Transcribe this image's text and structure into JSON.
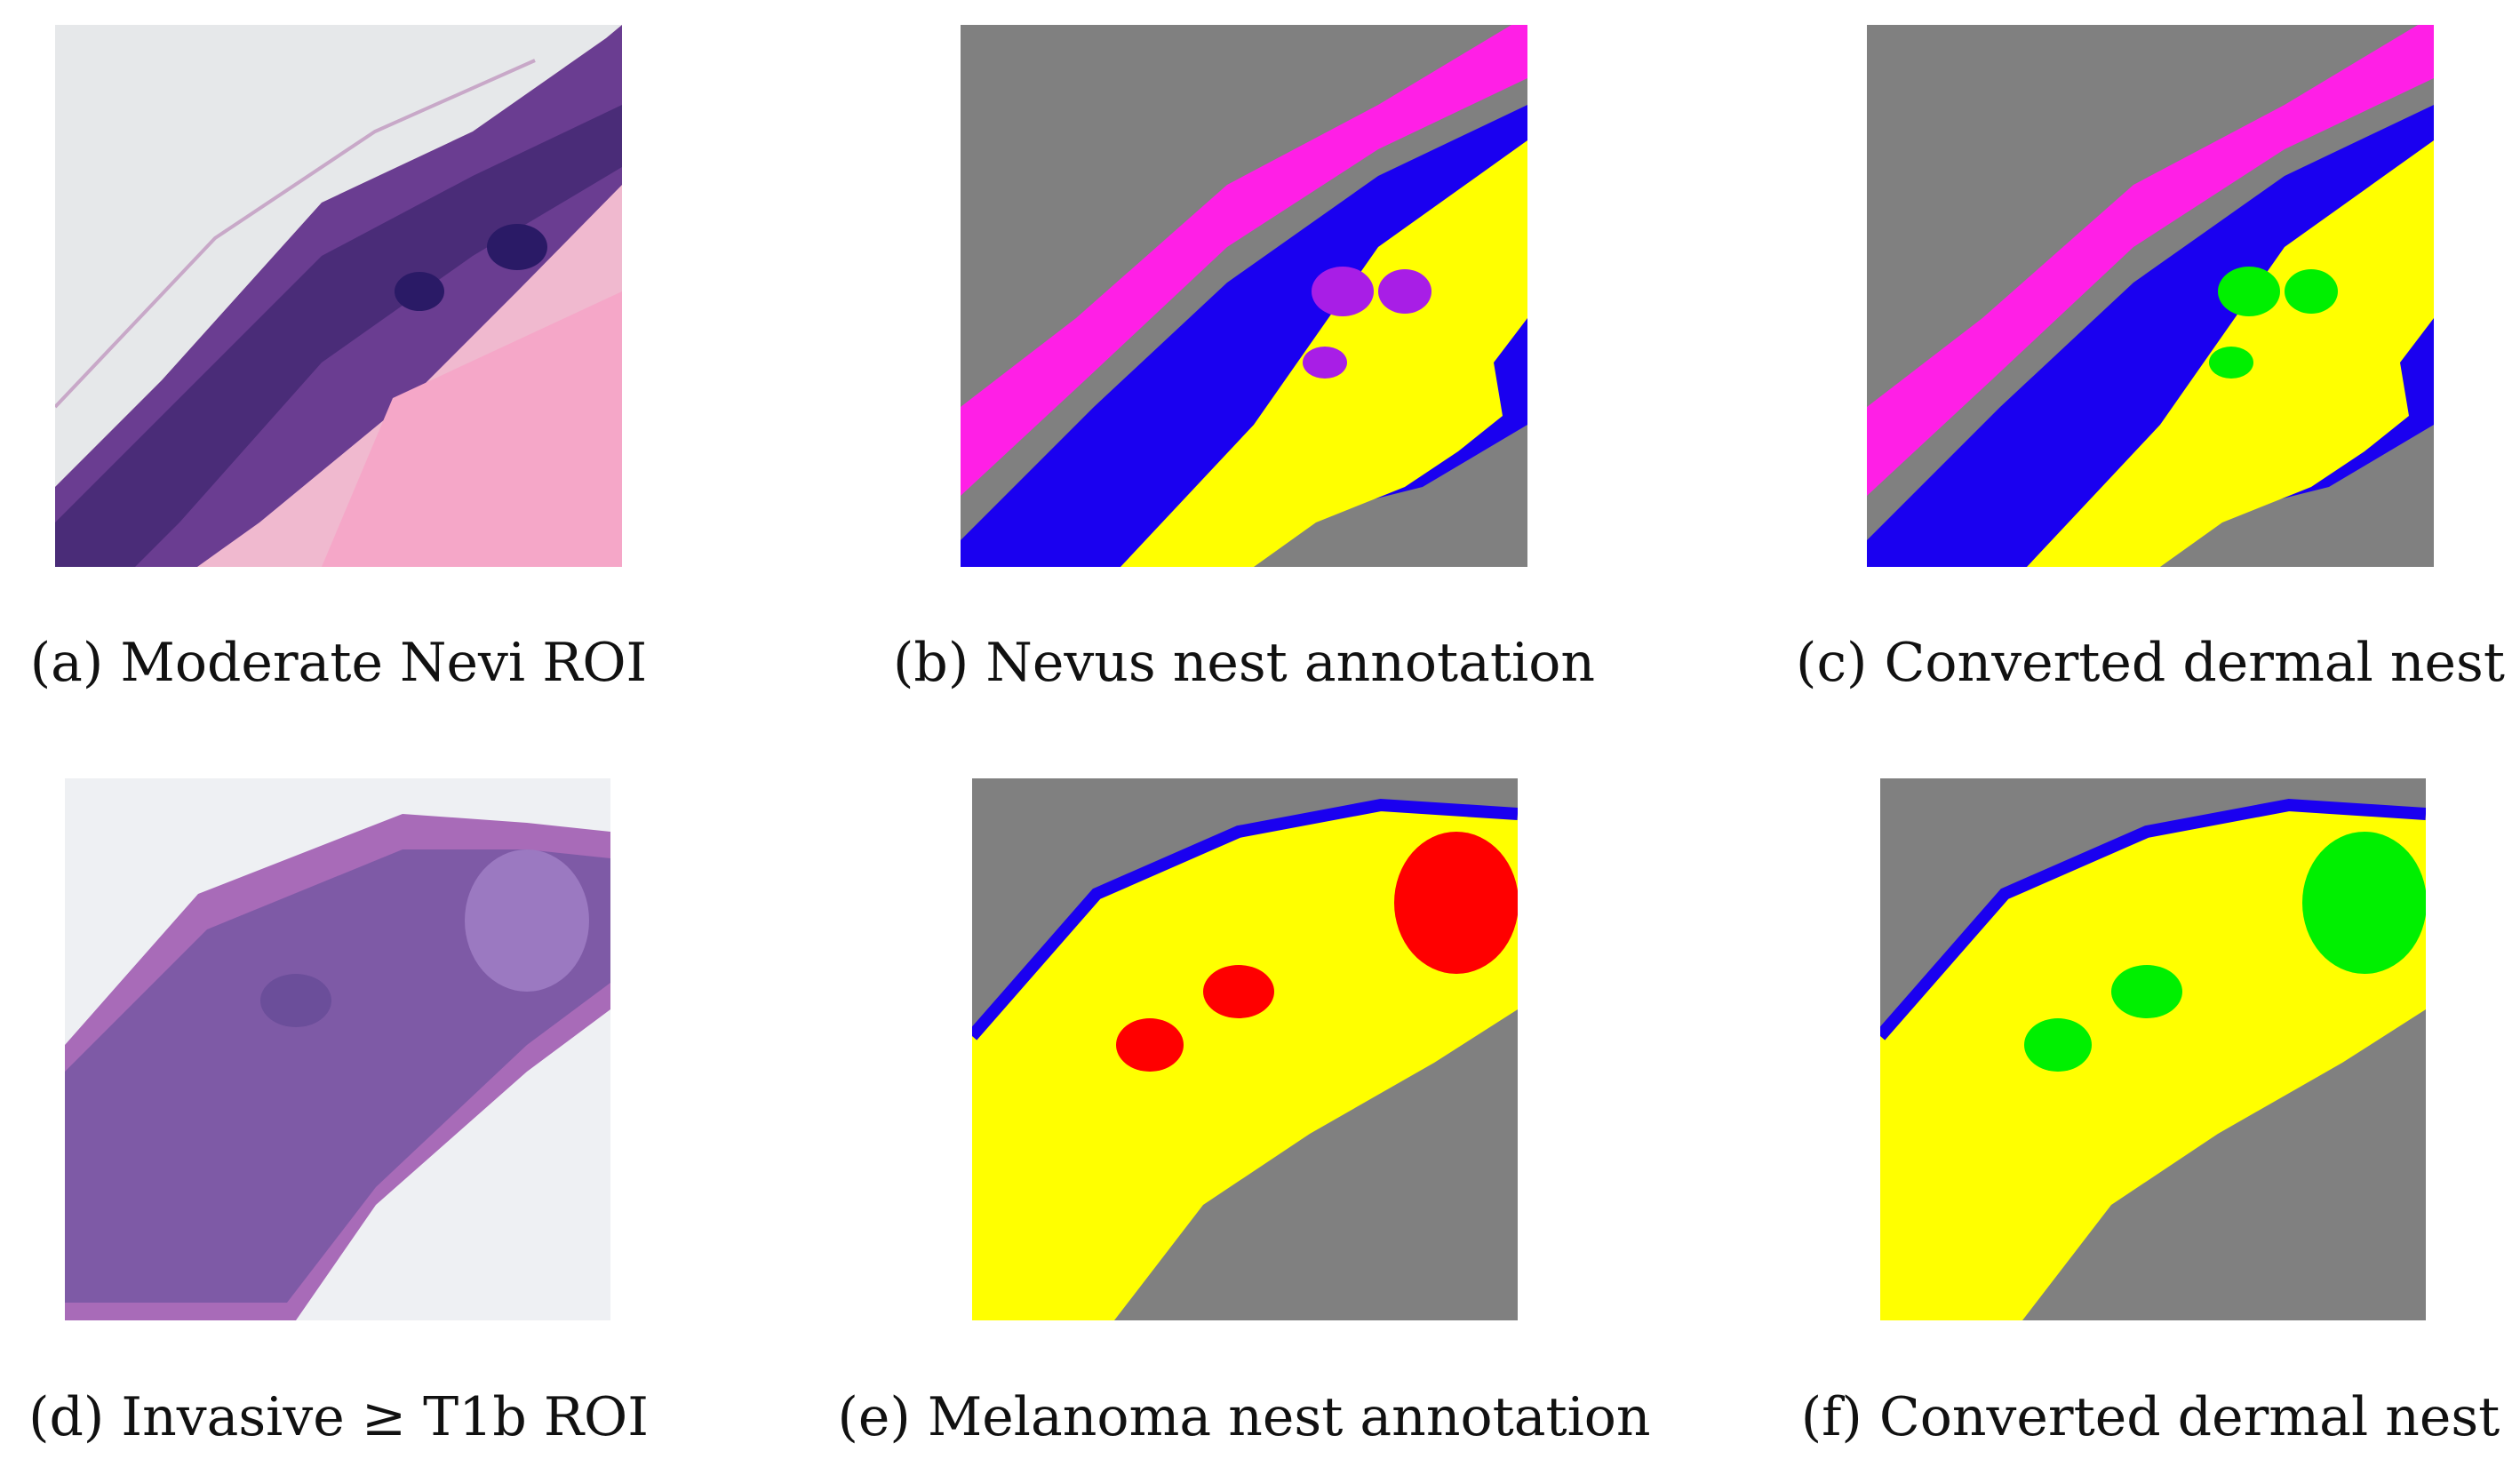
{
  "figure": {
    "panels": [
      {
        "id": "a",
        "caption": "(a) Moderate Nevi ROI",
        "kind": "histology"
      },
      {
        "id": "b",
        "caption": "(b) Nevus nest annotation",
        "kind": "segmentation"
      },
      {
        "id": "c",
        "caption": "(c) Converted dermal nest",
        "kind": "segmentation"
      },
      {
        "id": "d",
        "caption": "(d) Invasive ≥ T1b ROI",
        "kind": "histology"
      },
      {
        "id": "e",
        "caption": "(e) Melanoma nest annotation",
        "kind": "segmentation"
      },
      {
        "id": "f",
        "caption": "(f) Converted dermal nest",
        "kind": "segmentation"
      }
    ],
    "colors": {
      "background": "#808080",
      "epidermis": "#1a00f0",
      "dermis": "#ffff00",
      "stratum_corneum": "#ff1fe6",
      "nevus_nest": "#a81ee6",
      "melanoma_nest": "#ff0000",
      "dermal_nest": "#00f000",
      "dark_region": "#000000",
      "tissue_purple": "#7b3f9a",
      "tissue_pink": "#e58bb7"
    }
  }
}
